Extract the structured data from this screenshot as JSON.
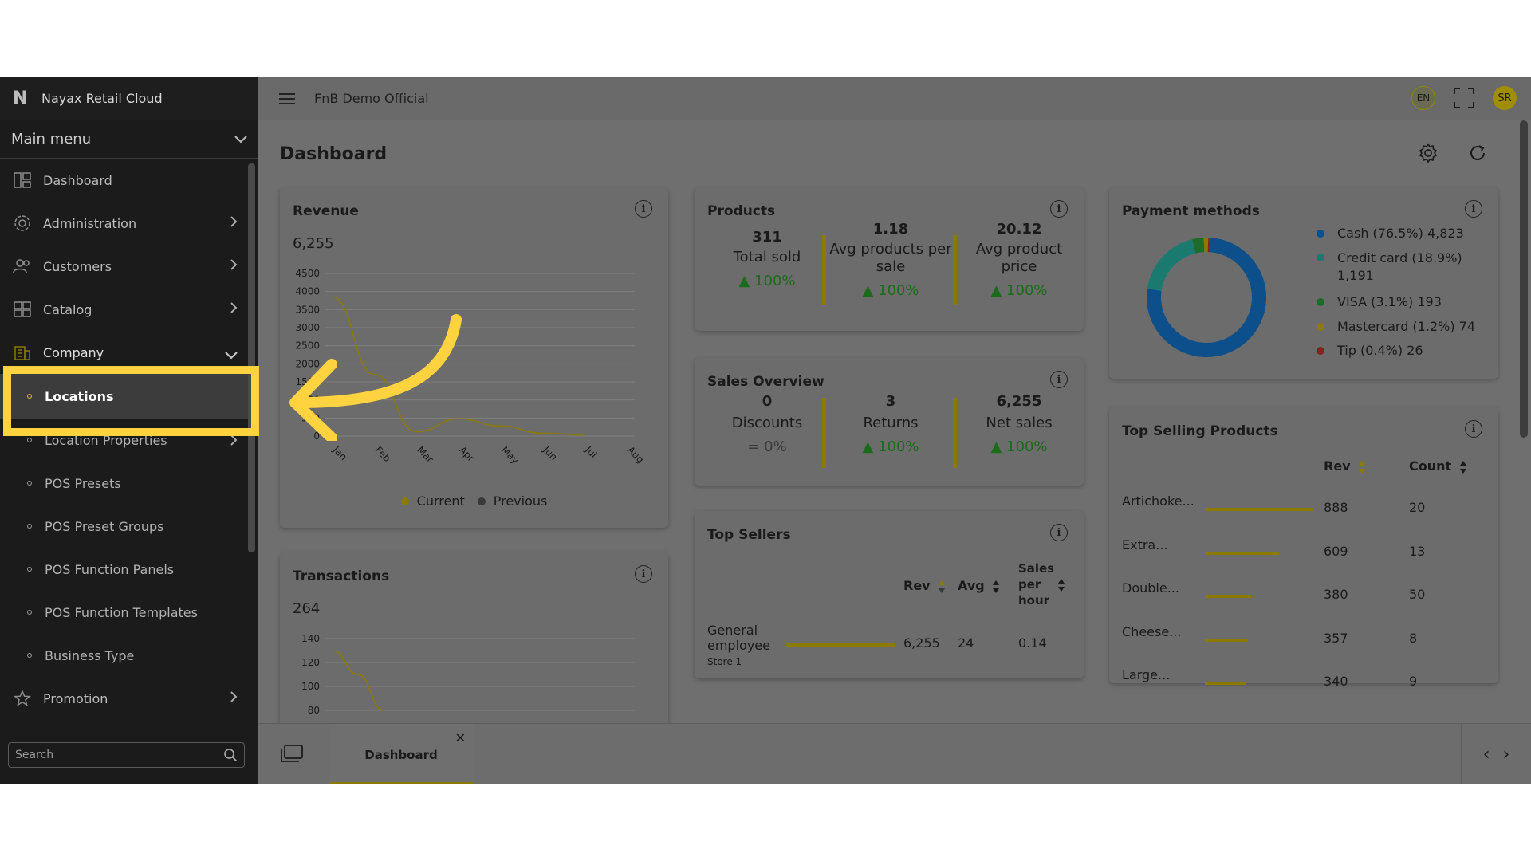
{
  "brand": {
    "name": "Nayax Retail Cloud",
    "logo": "N"
  },
  "sidebar": {
    "main_menu_label": "Main menu",
    "items": [
      {
        "label": "Dashboard",
        "icon": "dashboard-icon"
      },
      {
        "label": "Administration",
        "icon": "gear-user-icon"
      },
      {
        "label": "Customers",
        "icon": "users-icon"
      },
      {
        "label": "Catalog",
        "icon": "catalog-icon"
      },
      {
        "label": "Company",
        "icon": "building-icon"
      }
    ],
    "company_sub": [
      {
        "label": "Locations",
        "active": true
      },
      {
        "label": "Location Properties"
      },
      {
        "label": "POS Presets"
      },
      {
        "label": "POS Preset Groups"
      },
      {
        "label": "POS Function Panels"
      },
      {
        "label": "POS Function Templates"
      },
      {
        "label": "Business Type"
      }
    ],
    "promotion_label": "Promotion",
    "search_placeholder": "Search"
  },
  "topbar": {
    "org_name": "FnB Demo Official",
    "lang": "EN",
    "avatar": "SR"
  },
  "page": {
    "title": "Dashboard"
  },
  "revenue": {
    "title": "Revenue",
    "total": "6,255",
    "legend_current": "Current",
    "legend_previous": "Previous"
  },
  "transactions": {
    "title": "Transactions",
    "total": "264"
  },
  "products": {
    "title": "Products",
    "stats": [
      {
        "value": "311",
        "label": "Total sold",
        "change": "100%"
      },
      {
        "value": "1.18",
        "label": "Avg products per sale",
        "change": "100%"
      },
      {
        "value": "20.12",
        "label": "Avg product price",
        "change": "100%"
      }
    ]
  },
  "sales_overview": {
    "title": "Sales Overview",
    "stats": [
      {
        "value": "0",
        "label": "Discounts",
        "change": "0%"
      },
      {
        "value": "3",
        "label": "Returns",
        "change": "100%"
      },
      {
        "value": "6,255",
        "label": "Net sales",
        "change": "100%"
      }
    ]
  },
  "top_sellers": {
    "title": "Top Sellers",
    "headers": {
      "rev": "Rev",
      "avg": "Avg",
      "sales_per_hour": "Sales per hour"
    },
    "rows": [
      {
        "name": "General employee",
        "store": "Store 1",
        "rev": "6,255",
        "avg": "24",
        "sph": "0.14",
        "bar": 1.0
      }
    ]
  },
  "payment_methods": {
    "title": "Payment methods",
    "items": [
      {
        "label": "Cash (76.5%) 4,823",
        "color": "#0d4f8a",
        "pct": 76.5
      },
      {
        "label": "Credit card (18.9%) 1,191",
        "color": "#1a7a70",
        "pct": 18.9
      },
      {
        "label": "VISA (3.1%) 193",
        "color": "#1e6b2a",
        "pct": 3.1
      },
      {
        "label": "Mastercard (1.2%) 74",
        "color": "#8a7a00",
        "pct": 1.2
      },
      {
        "label": "Tip (0.4%) 26",
        "color": "#8a1f1f",
        "pct": 0.4
      }
    ]
  },
  "top_selling_products": {
    "title": "Top Selling Products",
    "headers": {
      "rev": "Rev",
      "count": "Count"
    },
    "rows": [
      {
        "name": "Artichoke...",
        "rev": "888",
        "count": "20",
        "bar": 1.0
      },
      {
        "name": "Extra...",
        "rev": "609",
        "count": "13",
        "bar": 0.686
      },
      {
        "name": "Double...",
        "rev": "380",
        "count": "50",
        "bar": 0.428
      },
      {
        "name": "Cheese...",
        "rev": "357",
        "count": "8",
        "bar": 0.402
      },
      {
        "name": "Large...",
        "rev": "340",
        "count": "9",
        "bar": 0.383
      }
    ]
  },
  "tabs": {
    "active_label": "Dashboard"
  },
  "colors": {
    "accent": "#ffd23f",
    "sidebar_bg": "#1b1b1b",
    "overlay_gray": "#6f6f6f"
  },
  "chart_data": [
    {
      "type": "line",
      "x": [
        "Jan",
        "Feb",
        "Mar",
        "Apr",
        "May",
        "Jun",
        "Jul",
        "Aug"
      ],
      "series": [
        {
          "name": "Current",
          "values": [
            3850,
            1700,
            120,
            480,
            280,
            80,
            30,
            null
          ]
        }
      ],
      "ylim": [
        0,
        4500
      ],
      "yticks": [
        "0",
        "500",
        "1000",
        "1500",
        "2000",
        "2500",
        "3000",
        "3500",
        "4000",
        "4500"
      ],
      "legend": "bottom"
    },
    {
      "type": "line",
      "yticks": [
        "80",
        "100",
        "120",
        "140"
      ],
      "ylim": [
        80,
        140
      ],
      "series": [
        {
          "name": "Current",
          "values": [
            130,
            110,
            80
          ]
        }
      ]
    },
    {
      "type": "pie",
      "categories": [
        "Cash",
        "Credit card",
        "VISA",
        "Mastercard",
        "Tip"
      ],
      "values": [
        76.5,
        18.9,
        3.1,
        1.2,
        0.4
      ]
    }
  ]
}
